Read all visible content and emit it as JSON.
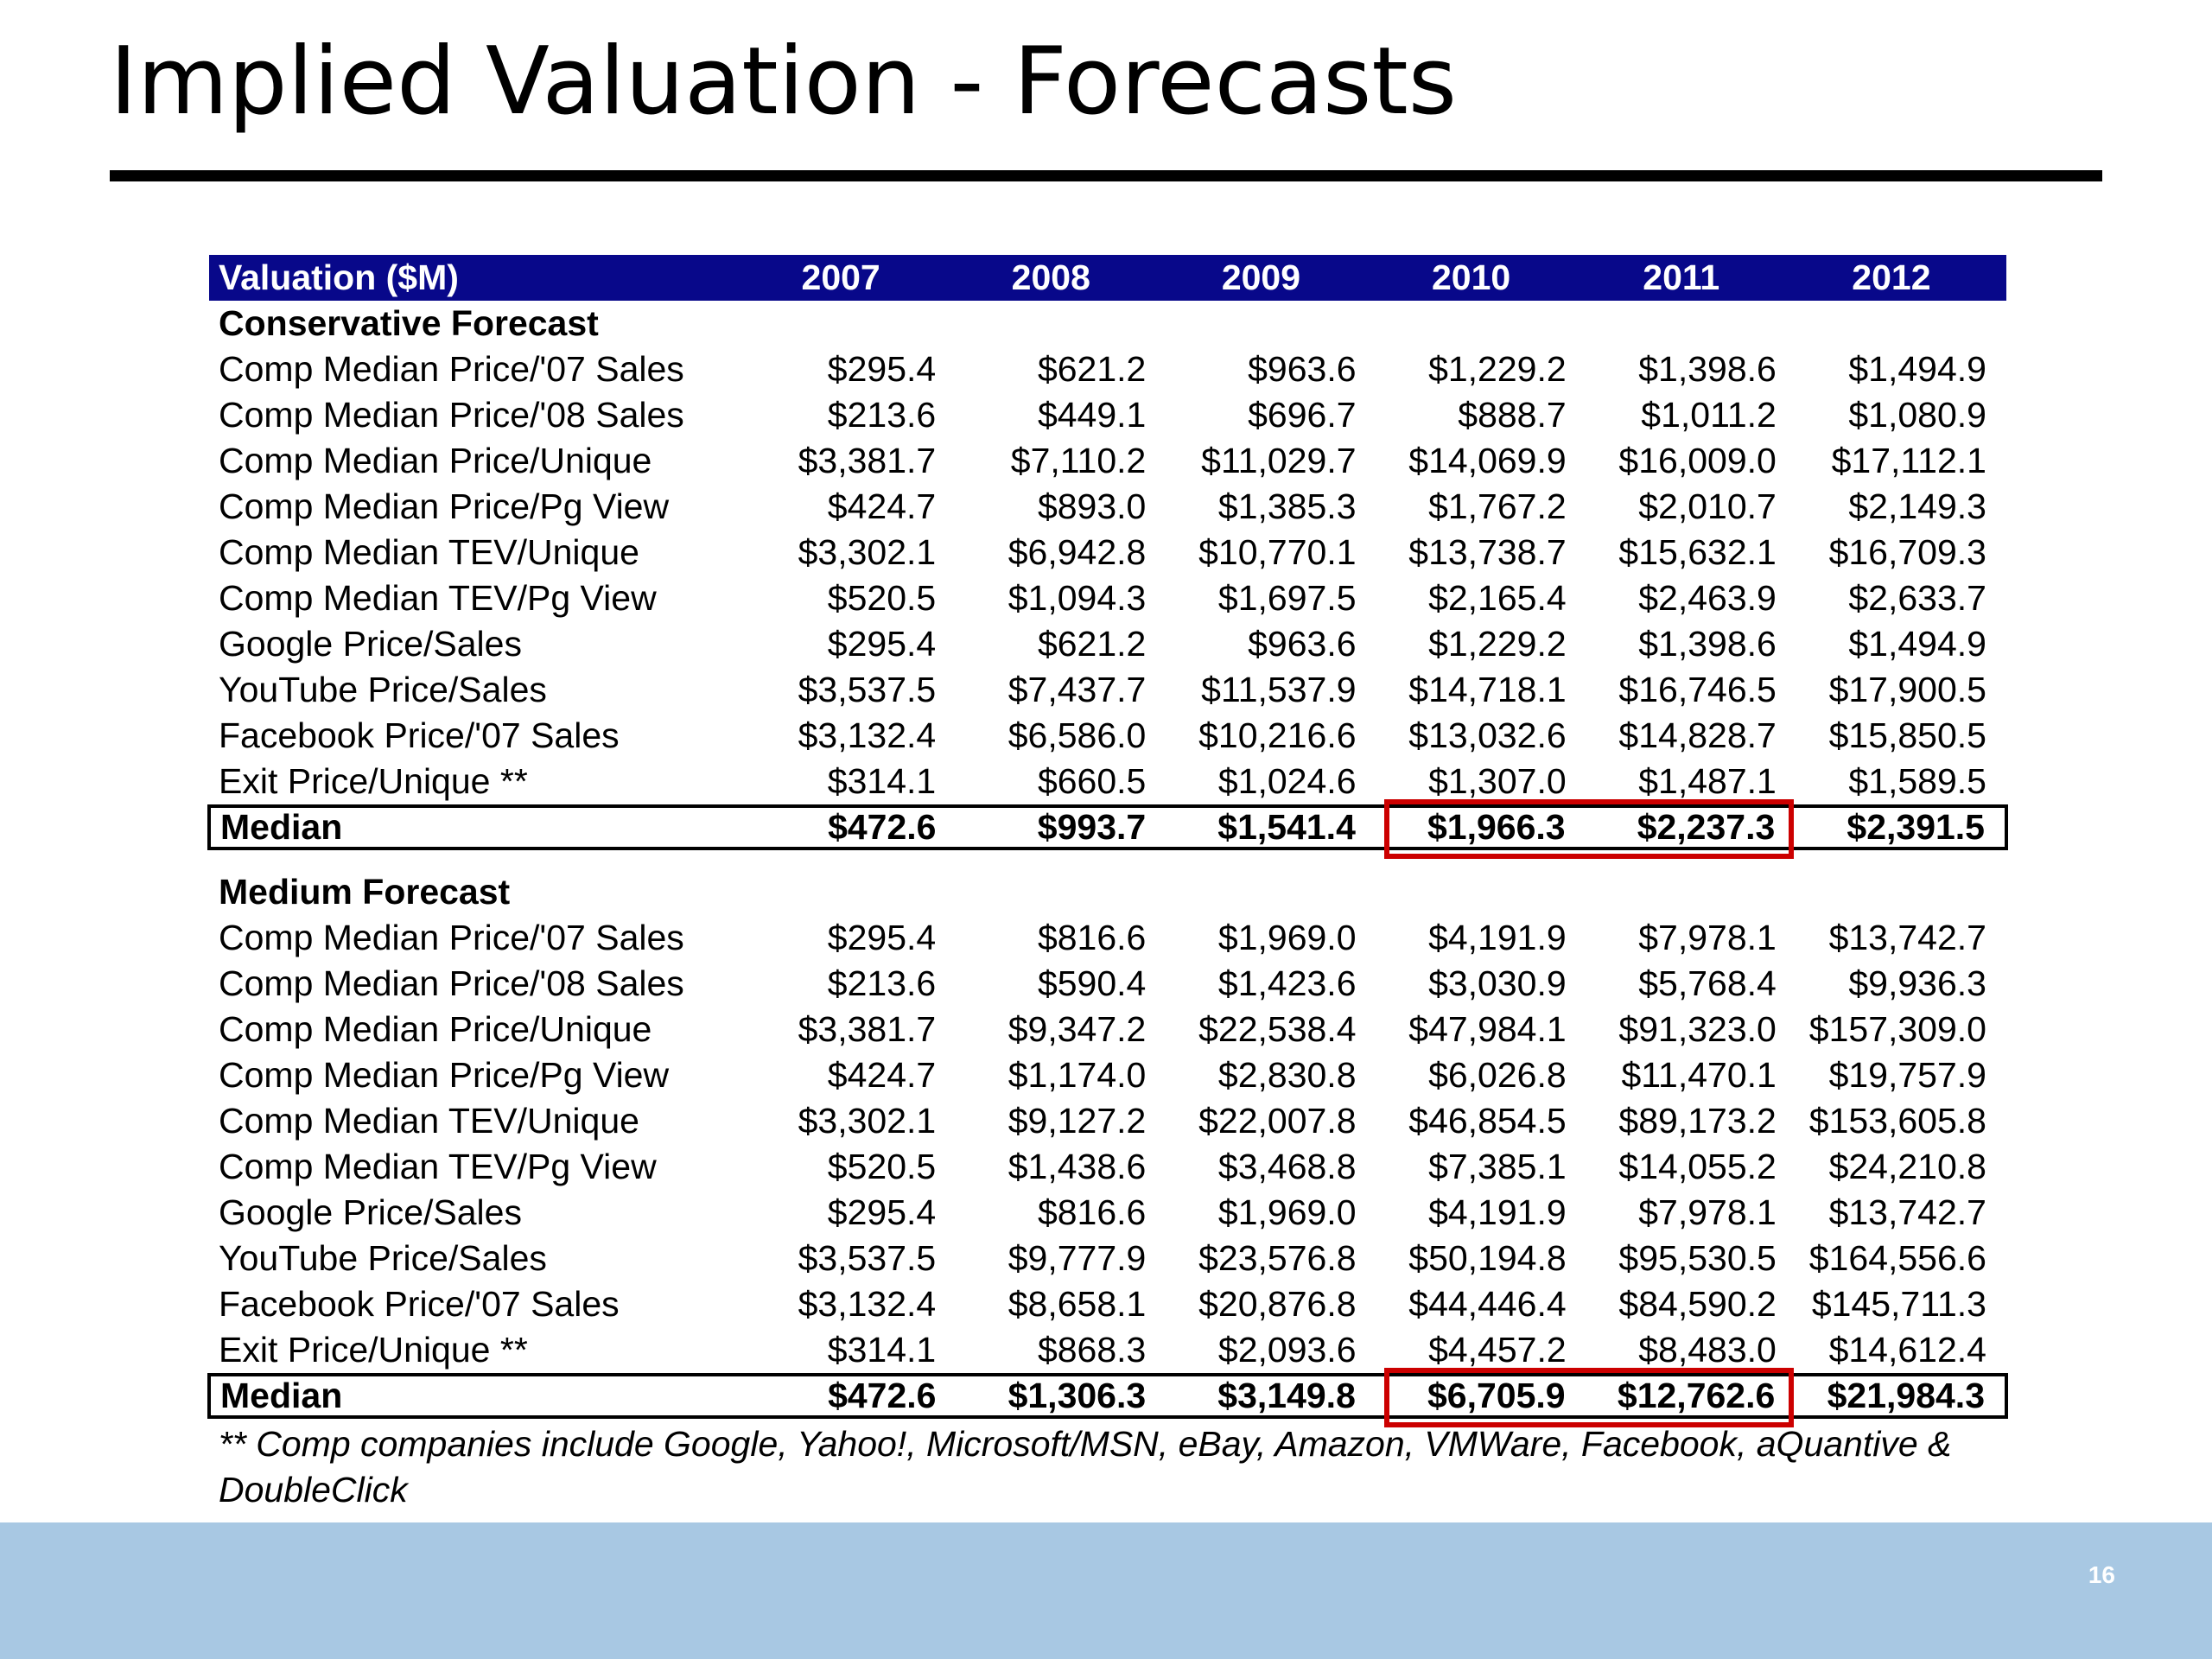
{
  "title": "Implied Valuation - Forecasts",
  "page_number": "16",
  "table": {
    "header": {
      "label": "Valuation ($M)",
      "years": [
        "2007",
        "2008",
        "2009",
        "2010",
        "2011",
        "2012"
      ]
    },
    "conservative": {
      "title": "Conservative Forecast",
      "rows": [
        {
          "label": "Comp Median Price/'07 Sales",
          "values": [
            "$295.4",
            "$621.2",
            "$963.6",
            "$1,229.2",
            "$1,398.6",
            "$1,494.9"
          ]
        },
        {
          "label": "Comp Median Price/'08 Sales",
          "values": [
            "$213.6",
            "$449.1",
            "$696.7",
            "$888.7",
            "$1,011.2",
            "$1,080.9"
          ]
        },
        {
          "label": "Comp Median Price/Unique",
          "values": [
            "$3,381.7",
            "$7,110.2",
            "$11,029.7",
            "$14,069.9",
            "$16,009.0",
            "$17,112.1"
          ]
        },
        {
          "label": "Comp Median Price/Pg View",
          "values": [
            "$424.7",
            "$893.0",
            "$1,385.3",
            "$1,767.2",
            "$2,010.7",
            "$2,149.3"
          ]
        },
        {
          "label": "Comp Median TEV/Unique",
          "values": [
            "$3,302.1",
            "$6,942.8",
            "$10,770.1",
            "$13,738.7",
            "$15,632.1",
            "$16,709.3"
          ]
        },
        {
          "label": "Comp Median TEV/Pg View",
          "values": [
            "$520.5",
            "$1,094.3",
            "$1,697.5",
            "$2,165.4",
            "$2,463.9",
            "$2,633.7"
          ]
        },
        {
          "label": "Google Price/Sales",
          "values": [
            "$295.4",
            "$621.2",
            "$963.6",
            "$1,229.2",
            "$1,398.6",
            "$1,494.9"
          ]
        },
        {
          "label": "YouTube Price/Sales",
          "values": [
            "$3,537.5",
            "$7,437.7",
            "$11,537.9",
            "$14,718.1",
            "$16,746.5",
            "$17,900.5"
          ]
        },
        {
          "label": "Facebook Price/'07 Sales",
          "values": [
            "$3,132.4",
            "$6,586.0",
            "$10,216.6",
            "$13,032.6",
            "$14,828.7",
            "$15,850.5"
          ]
        },
        {
          "label": "Exit Price/Unique **",
          "values": [
            "$314.1",
            "$660.5",
            "$1,024.6",
            "$1,307.0",
            "$1,487.1",
            "$1,589.5"
          ]
        }
      ],
      "median": {
        "label": "Median",
        "values": [
          "$472.6",
          "$993.7",
          "$1,541.4",
          "$1,966.3",
          "$2,237.3",
          "$2,391.5"
        ]
      }
    },
    "medium": {
      "title": "Medium Forecast",
      "rows": [
        {
          "label": "Comp Median Price/'07 Sales",
          "values": [
            "$295.4",
            "$816.6",
            "$1,969.0",
            "$4,191.9",
            "$7,978.1",
            "$13,742.7"
          ]
        },
        {
          "label": "Comp Median Price/'08 Sales",
          "values": [
            "$213.6",
            "$590.4",
            "$1,423.6",
            "$3,030.9",
            "$5,768.4",
            "$9,936.3"
          ]
        },
        {
          "label": "Comp Median Price/Unique",
          "values": [
            "$3,381.7",
            "$9,347.2",
            "$22,538.4",
            "$47,984.1",
            "$91,323.0",
            "$157,309.0"
          ]
        },
        {
          "label": "Comp Median Price/Pg View",
          "values": [
            "$424.7",
            "$1,174.0",
            "$2,830.8",
            "$6,026.8",
            "$11,470.1",
            "$19,757.9"
          ]
        },
        {
          "label": "Comp Median TEV/Unique",
          "values": [
            "$3,302.1",
            "$9,127.2",
            "$22,007.8",
            "$46,854.5",
            "$89,173.2",
            "$153,605.8"
          ]
        },
        {
          "label": "Comp Median TEV/Pg View",
          "values": [
            "$520.5",
            "$1,438.6",
            "$3,468.8",
            "$7,385.1",
            "$14,055.2",
            "$24,210.8"
          ]
        },
        {
          "label": "Google Price/Sales",
          "values": [
            "$295.4",
            "$816.6",
            "$1,969.0",
            "$4,191.9",
            "$7,978.1",
            "$13,742.7"
          ]
        },
        {
          "label": "YouTube Price/Sales",
          "values": [
            "$3,537.5",
            "$9,777.9",
            "$23,576.8",
            "$50,194.8",
            "$95,530.5",
            "$164,556.6"
          ]
        },
        {
          "label": "Facebook Price/'07 Sales",
          "values": [
            "$3,132.4",
            "$8,658.1",
            "$20,876.8",
            "$44,446.4",
            "$84,590.2",
            "$145,711.3"
          ]
        },
        {
          "label": "Exit Price/Unique **",
          "values": [
            "$314.1",
            "$868.3",
            "$2,093.6",
            "$4,457.2",
            "$8,483.0",
            "$14,612.4"
          ]
        }
      ],
      "median": {
        "label": "Median",
        "values": [
          "$472.6",
          "$1,306.3",
          "$3,149.8",
          "$6,705.9",
          "$12,762.6",
          "$21,984.3"
        ]
      }
    }
  },
  "footnote": "** Comp companies include Google, Yahoo!, Microsoft/MSN, eBay, Amazon, VMWare, Facebook, aQuantive & DoubleClick",
  "colors": {
    "header_bg": "#08088a",
    "highlight": "#cc0000",
    "footer_band": "#a8c8e3"
  }
}
